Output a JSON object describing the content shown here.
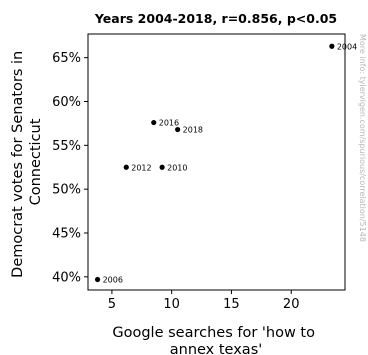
{
  "chart_data": {
    "type": "scatter",
    "title": "Years 2004-2018, r=0.856, p<0.05",
    "xlabel": [
      "Google searches for 'how to",
      "annex texas'"
    ],
    "ylabel": [
      "Democrat votes for Senators in",
      "Connecticut"
    ],
    "xlim": [
      3,
      24.5
    ],
    "ylim": [
      38.5,
      67.7
    ],
    "xticks": [
      5,
      10,
      15,
      20
    ],
    "xtick_labels": [
      "5",
      "10",
      "15",
      "20"
    ],
    "yticks": [
      40,
      45,
      50,
      55,
      60,
      65
    ],
    "ytick_labels": [
      "40%",
      "45%",
      "50%",
      "55%",
      "60%",
      "65%"
    ],
    "grid": false,
    "points": [
      {
        "label": "2004",
        "x": 23.4,
        "y": 66.3
      },
      {
        "label": "2006",
        "x": 3.8,
        "y": 39.7
      },
      {
        "label": "2010",
        "x": 9.2,
        "y": 52.5
      },
      {
        "label": "2012",
        "x": 6.2,
        "y": 52.5
      },
      {
        "label": "2016",
        "x": 8.5,
        "y": 57.6
      },
      {
        "label": "2018",
        "x": 10.5,
        "y": 56.8
      }
    ],
    "watermark": "More info: tylervigen.com/spurious/correlation/5148"
  }
}
